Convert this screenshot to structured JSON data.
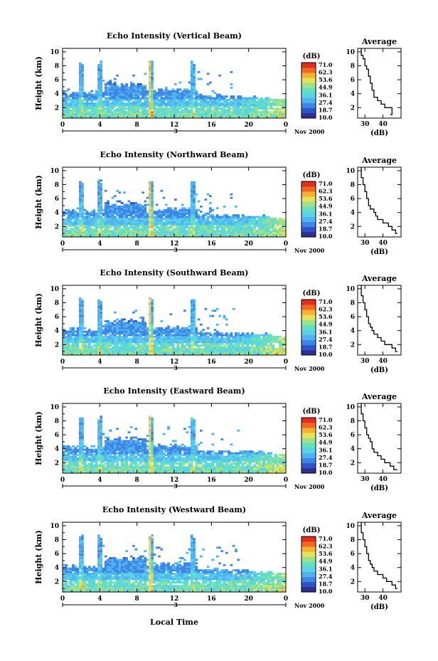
{
  "figure": {
    "xaxis_title": "Local Time",
    "date_label": "Nov 2000",
    "day_label": "3"
  },
  "palette": [
    "#2e2f92",
    "#2f54c8",
    "#3d86e6",
    "#4fb3f0",
    "#5ad2e8",
    "#62e0bf",
    "#9fe08a",
    "#e5e25a",
    "#f7b030",
    "#f26722",
    "#e22d1c"
  ],
  "chart_data": [
    {
      "type": "heatmap",
      "title": "Echo Intensity (Vertical Beam)",
      "ylabel": "Height (km)",
      "xlabel": "",
      "x_ticks": [
        "0",
        "4",
        "8",
        "12",
        "16",
        "20",
        "0"
      ],
      "y_ticks": [
        "2",
        "4",
        "6",
        "8",
        "10"
      ],
      "xlim": [
        0,
        24
      ],
      "ylim": [
        0.5,
        10.5
      ],
      "colorbar": {
        "unit": "(dB)",
        "labels": [
          "71.0",
          "62.3",
          "53.6",
          "44.9",
          "36.1",
          "27.4",
          "18.7",
          "10.0"
        ],
        "range": [
          10.0,
          71.0
        ]
      },
      "profile": {
        "title": "Average",
        "xlabel": "(dB)",
        "x_ticks": [
          "30",
          "40"
        ],
        "xlim": [
          26,
          50
        ],
        "x": [
          44,
          45,
          45,
          41,
          39,
          37,
          35,
          35,
          34,
          34,
          33,
          33,
          32,
          32,
          31,
          30,
          30,
          29,
          28,
          28
        ],
        "y": [
          1.0,
          1.5,
          2.0,
          2.5,
          3.0,
          3.5,
          4.0,
          4.5,
          5.0,
          5.5,
          6.0,
          6.5,
          7.0,
          7.5,
          8.0,
          8.5,
          9.0,
          9.5,
          10.0,
          10.5
        ]
      }
    },
    {
      "type": "heatmap",
      "title": "Echo Intensity (Northward Beam)",
      "ylabel": "Height (km)",
      "xlabel": "",
      "x_ticks": [
        "0",
        "4",
        "8",
        "12",
        "16",
        "20",
        "0"
      ],
      "y_ticks": [
        "2",
        "4",
        "6",
        "8",
        "10"
      ],
      "xlim": [
        0,
        24
      ],
      "ylim": [
        0.5,
        10.5
      ],
      "colorbar": {
        "unit": "(dB)",
        "labels": [
          "71.0",
          "62.3",
          "53.6",
          "44.9",
          "36.1",
          "27.4",
          "18.7",
          "10.0"
        ],
        "range": [
          10.0,
          71.0
        ]
      },
      "profile": {
        "title": "Average",
        "xlabel": "(dB)",
        "x_ticks": [
          "30",
          "40"
        ],
        "xlim": [
          26,
          50
        ],
        "x": [
          48,
          47,
          45,
          43,
          40,
          37,
          36,
          35,
          33,
          32,
          32,
          31,
          31,
          30,
          30,
          29,
          29,
          28,
          28,
          28
        ],
        "y": [
          1.0,
          1.5,
          2.0,
          2.5,
          3.0,
          3.5,
          4.0,
          4.5,
          5.0,
          5.5,
          6.0,
          6.5,
          7.0,
          7.5,
          8.0,
          8.5,
          9.0,
          9.5,
          10.0,
          10.5
        ]
      }
    },
    {
      "type": "heatmap",
      "title": "Echo Intensity (Southward Beam)",
      "ylabel": "Height (km)",
      "xlabel": "",
      "x_ticks": [
        "0",
        "4",
        "8",
        "12",
        "16",
        "20",
        "0"
      ],
      "y_ticks": [
        "2",
        "4",
        "6",
        "8",
        "10"
      ],
      "xlim": [
        0,
        24
      ],
      "ylim": [
        0.5,
        10.5
      ],
      "colorbar": {
        "unit": "(dB)",
        "labels": [
          "71.0",
          "62.3",
          "53.6",
          "44.9",
          "36.1",
          "27.4",
          "18.7",
          "10.0"
        ],
        "range": [
          10.0,
          71.0
        ]
      },
      "profile": {
        "title": "Average",
        "xlabel": "(dB)",
        "x_ticks": [
          "30",
          "40"
        ],
        "xlim": [
          26,
          50
        ],
        "x": [
          48,
          47,
          45,
          41,
          39,
          37,
          35,
          34,
          33,
          32,
          32,
          31,
          31,
          30,
          30,
          29,
          29,
          28,
          28,
          28
        ],
        "y": [
          1.0,
          1.5,
          2.0,
          2.5,
          3.0,
          3.5,
          4.0,
          4.5,
          5.0,
          5.5,
          6.0,
          6.5,
          7.0,
          7.5,
          8.0,
          8.5,
          9.0,
          9.5,
          10.0,
          10.5
        ]
      }
    },
    {
      "type": "heatmap",
      "title": "Echo Intensity (Eastward Beam)",
      "ylabel": "Height (km)",
      "xlabel": "",
      "x_ticks": [
        "0",
        "4",
        "8",
        "12",
        "16",
        "20",
        "0"
      ],
      "y_ticks": [
        "2",
        "4",
        "6",
        "8",
        "10"
      ],
      "xlim": [
        0,
        24
      ],
      "ylim": [
        0.5,
        10.5
      ],
      "colorbar": {
        "unit": "(dB)",
        "labels": [
          "71.0",
          "62.3",
          "53.6",
          "44.9",
          "36.1",
          "27.4",
          "18.7",
          "10.0"
        ],
        "range": [
          10.0,
          71.0
        ]
      },
      "profile": {
        "title": "Average",
        "xlabel": "(dB)",
        "x_ticks": [
          "30",
          "40"
        ],
        "xlim": [
          26,
          50
        ],
        "x": [
          48,
          46,
          44,
          41,
          39,
          37,
          35,
          34,
          34,
          33,
          32,
          31,
          31,
          30,
          30,
          29,
          29,
          28,
          28,
          28
        ],
        "y": [
          1.0,
          1.5,
          2.0,
          2.5,
          3.0,
          3.5,
          4.0,
          4.5,
          5.0,
          5.5,
          6.0,
          6.5,
          7.0,
          7.5,
          8.0,
          8.5,
          9.0,
          9.5,
          10.0,
          10.5
        ]
      }
    },
    {
      "type": "heatmap",
      "title": "Echo Intensity (Westward Beam)",
      "ylabel": "Height (km)",
      "xlabel": "",
      "x_ticks": [
        "0",
        "4",
        "8",
        "12",
        "16",
        "20",
        "0"
      ],
      "y_ticks": [
        "2",
        "4",
        "6",
        "8",
        "10"
      ],
      "xlim": [
        0,
        24
      ],
      "ylim": [
        0.5,
        10.5
      ],
      "colorbar": {
        "unit": "(dB)",
        "labels": [
          "71.0",
          "62.3",
          "53.6",
          "44.9",
          "36.1",
          "27.4",
          "18.7",
          "10.0"
        ],
        "range": [
          10.0,
          71.0
        ]
      },
      "profile": {
        "title": "Average",
        "xlabel": "(dB)",
        "x_ticks": [
          "30",
          "40"
        ],
        "xlim": [
          26,
          50
        ],
        "x": [
          48,
          47,
          45,
          42,
          40,
          37,
          35,
          34,
          33,
          32,
          32,
          31,
          31,
          30,
          30,
          29,
          29,
          28,
          28,
          28
        ],
        "y": [
          1.0,
          1.5,
          2.0,
          2.5,
          3.0,
          3.5,
          4.0,
          4.5,
          5.0,
          5.5,
          6.0,
          6.5,
          7.0,
          7.5,
          8.0,
          8.5,
          9.0,
          9.5,
          10.0,
          10.5
        ]
      }
    }
  ]
}
